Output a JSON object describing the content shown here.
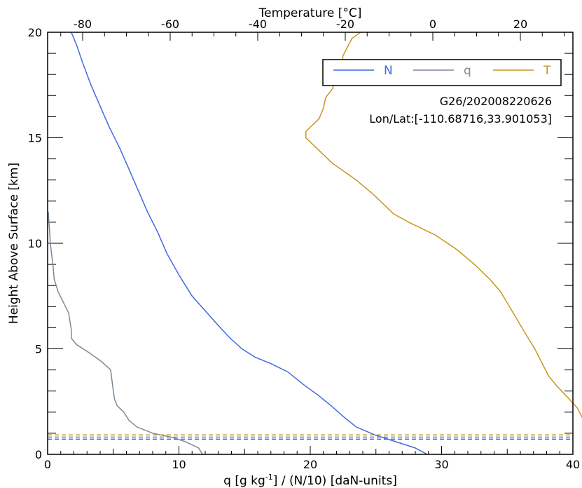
{
  "chart_data": {
    "type": "line",
    "top_axis_label": "Temperature [°C]",
    "xlabel_main": "q [g kg",
    "xlabel_sup": "-1",
    "xlabel_rest": "] / (N/10) [daN-units]",
    "ylabel": "Height Above Surface [km]",
    "xlim": [
      0,
      40
    ],
    "ylim": [
      0,
      20
    ],
    "top_xlim": [
      -88,
      32
    ],
    "x_ticks": [
      "0",
      "10",
      "20",
      "30",
      "40"
    ],
    "y_ticks": [
      "0",
      "5",
      "10",
      "15",
      "20"
    ],
    "top_ticks": [
      "-80",
      "-60",
      "-40",
      "-20",
      "0",
      "20"
    ],
    "annotation_line1": "G26/202008220626",
    "annotation_line2": "Lon/Lat:[-110.68716,33.901053]",
    "legend_placement": "top-right",
    "series": [
      {
        "name": "N",
        "color": "#4169e1",
        "axis": "bottom",
        "points": [
          [
            28.9,
            0.0
          ],
          [
            28.0,
            0.3
          ],
          [
            26.5,
            0.6
          ],
          [
            25.0,
            0.9
          ],
          [
            23.5,
            1.3
          ],
          [
            22.5,
            1.8
          ],
          [
            21.6,
            2.3
          ],
          [
            20.6,
            2.8
          ],
          [
            19.5,
            3.3
          ],
          [
            18.3,
            3.9
          ],
          [
            17.0,
            4.3
          ],
          [
            15.8,
            4.6
          ],
          [
            14.8,
            5.0
          ],
          [
            13.9,
            5.5
          ],
          [
            13.0,
            6.1
          ],
          [
            12.0,
            6.8
          ],
          [
            11.0,
            7.5
          ],
          [
            10.0,
            8.5
          ],
          [
            9.1,
            9.5
          ],
          [
            8.4,
            10.5
          ],
          [
            7.6,
            11.5
          ],
          [
            6.9,
            12.5
          ],
          [
            6.2,
            13.5
          ],
          [
            5.5,
            14.5
          ],
          [
            4.7,
            15.5
          ],
          [
            4.0,
            16.5
          ],
          [
            3.3,
            17.5
          ],
          [
            2.7,
            18.5
          ],
          [
            2.2,
            19.4
          ],
          [
            1.8,
            20.0
          ]
        ]
      },
      {
        "name": "q",
        "color": "#7a8a99",
        "axis": "bottom",
        "points": [
          [
            11.8,
            0.0
          ],
          [
            11.5,
            0.3
          ],
          [
            10.5,
            0.6
          ],
          [
            9.5,
            0.8
          ],
          [
            8.0,
            1.0
          ],
          [
            6.8,
            1.3
          ],
          [
            6.2,
            1.6
          ],
          [
            5.8,
            2.0
          ],
          [
            5.3,
            2.3
          ],
          [
            5.1,
            2.6
          ],
          [
            5.0,
            3.0
          ],
          [
            4.9,
            3.5
          ],
          [
            4.8,
            4.0
          ],
          [
            4.1,
            4.4
          ],
          [
            3.2,
            4.8
          ],
          [
            2.2,
            5.2
          ],
          [
            1.8,
            5.5
          ],
          [
            1.8,
            5.9
          ],
          [
            1.7,
            6.3
          ],
          [
            1.6,
            6.7
          ],
          [
            1.2,
            7.2
          ],
          [
            0.8,
            7.7
          ],
          [
            0.5,
            8.3
          ],
          [
            0.4,
            9.0
          ],
          [
            0.3,
            9.5
          ],
          [
            0.2,
            10.0
          ],
          [
            0.15,
            10.6
          ],
          [
            0.1,
            11.0
          ],
          [
            0.05,
            11.5
          ]
        ]
      },
      {
        "name": "T",
        "color": "#c8961e",
        "axis": "top",
        "points": [
          [
            38.6,
            0.0
          ],
          [
            37.3,
            0.4
          ],
          [
            36.6,
            0.6
          ],
          [
            36.7,
            0.9
          ],
          [
            36.2,
            1.0
          ],
          [
            35.8,
            1.1
          ],
          [
            34.5,
            1.6
          ],
          [
            33.0,
            2.2
          ],
          [
            30.8,
            2.7
          ],
          [
            28.5,
            3.2
          ],
          [
            26.5,
            3.7
          ],
          [
            25.0,
            4.3
          ],
          [
            23.3,
            5.0
          ],
          [
            21.5,
            5.6
          ],
          [
            19.5,
            6.3
          ],
          [
            17.5,
            7.0
          ],
          [
            15.5,
            7.7
          ],
          [
            13.0,
            8.3
          ],
          [
            9.5,
            9.0
          ],
          [
            5.5,
            9.7
          ],
          [
            0.5,
            10.4
          ],
          [
            -5.5,
            11.0
          ],
          [
            -9.0,
            11.4
          ],
          [
            -11.0,
            11.8
          ],
          [
            -13.5,
            12.3
          ],
          [
            -17.5,
            13.0
          ],
          [
            -23.0,
            13.8
          ],
          [
            -26.5,
            14.5
          ],
          [
            -29.0,
            15.0
          ],
          [
            -29.0,
            15.3
          ],
          [
            -28.0,
            15.5
          ],
          [
            -26.0,
            15.9
          ],
          [
            -25.0,
            16.4
          ],
          [
            -24.5,
            16.9
          ],
          [
            -23.0,
            17.3
          ],
          [
            -22.0,
            17.8
          ],
          [
            -21.0,
            18.4
          ],
          [
            -20.5,
            18.9
          ],
          [
            -19.5,
            19.3
          ],
          [
            -18.5,
            19.7
          ],
          [
            -16.5,
            20.0
          ]
        ]
      }
    ],
    "dashed_lines": [
      {
        "y": 0.92,
        "color": "#c8961e"
      },
      {
        "y": 0.82,
        "color": "#7a8a99"
      },
      {
        "y": 0.72,
        "color": "#4169e1"
      }
    ]
  }
}
